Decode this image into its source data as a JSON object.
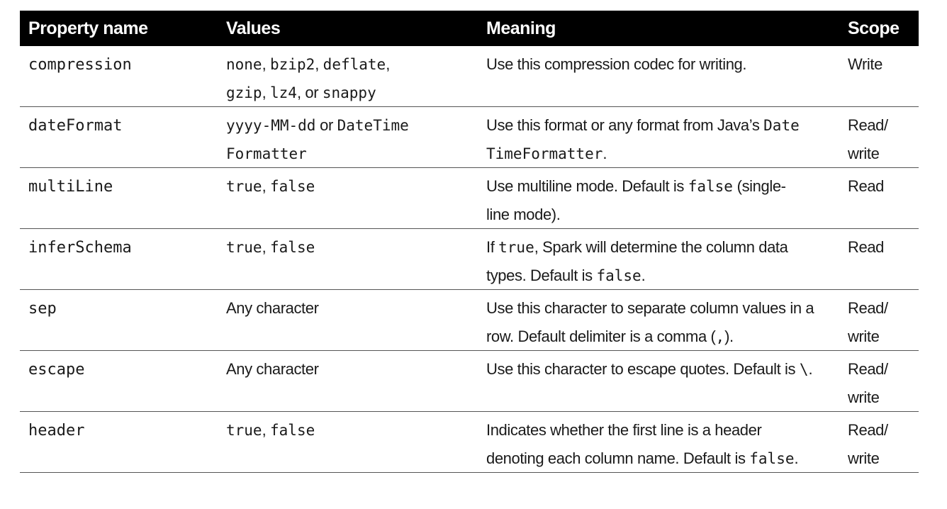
{
  "headers": {
    "property": "Property name",
    "values": "Values",
    "meaning": "Meaning",
    "scope": "Scope"
  },
  "rows": [
    {
      "property": "compression",
      "values": {
        "v0": "none",
        "s0": ", ",
        "v1": "bzip2",
        "s1": ", ",
        "v2": "deflate",
        "s2": ",",
        "v3": "gzip",
        "s3": ", ",
        "v4": "lz4",
        "s4": ", or ",
        "v5": "snappy"
      },
      "meaning": "Use this compression codec for writing.",
      "scope": "Write"
    },
    {
      "property": "dateFormat",
      "values": {
        "v0": "yyyy-MM-dd",
        "s0": " or ",
        "v1": "DateTime",
        "v2": "Formatter"
      },
      "meaning": {
        "t0": "Use this format or any format from Java’s ",
        "c0": "Date",
        "c1": "TimeFormatter",
        "t1": "."
      },
      "scope": {
        "line1": "Read/",
        "line2": "write"
      }
    },
    {
      "property": "multiLine",
      "values": {
        "v0": "true",
        "s0": ", ",
        "v1": "false"
      },
      "meaning": {
        "t0": "Use multiline mode. Default is ",
        "c0": "false",
        "t1": " (single-",
        "t2": "line mode)."
      },
      "scope": "Read"
    },
    {
      "property": "inferSchema",
      "values": {
        "v0": "true",
        "s0": ", ",
        "v1": "false"
      },
      "meaning": {
        "t0": "If ",
        "c0": "true",
        "t1": ", Spark will determine the column data",
        "t2": "types. Default is ",
        "c1": "false",
        "t3": "."
      },
      "scope": "Read"
    },
    {
      "property": "sep",
      "values": {
        "t0": "Any character"
      },
      "meaning": {
        "t0": "Use this character to separate column values in a",
        "t1": "row. Default delimiter is a comma (",
        "c0": ",",
        "t2": ")."
      },
      "scope": {
        "line1": "Read/",
        "line2": "write"
      }
    },
    {
      "property": "escape",
      "values": {
        "t0": "Any character"
      },
      "meaning": {
        "t0": "Use this character to escape quotes. Default is ",
        "c0": "\\",
        "t1": "."
      },
      "scope": {
        "line1": "Read/",
        "line2": "write"
      }
    },
    {
      "property": "header",
      "values": {
        "v0": "true",
        "s0": ", ",
        "v1": "false"
      },
      "meaning": {
        "t0": "Indicates whether the first line is a header",
        "t1": "denoting each column name. Default is ",
        "c0": "false",
        "t2": "."
      },
      "scope": {
        "line1": "Read/",
        "line2": "write"
      }
    }
  ]
}
